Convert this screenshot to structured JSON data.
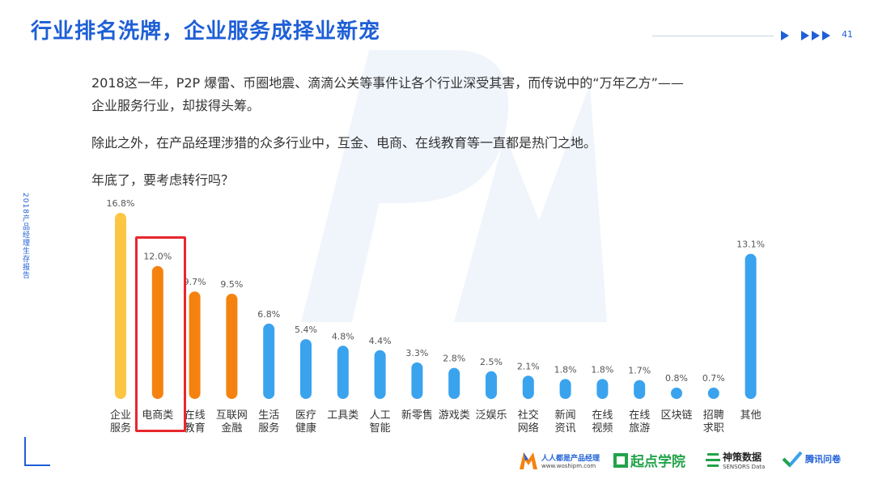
{
  "header": {
    "title": "行业排名洗牌，企业服务成择业新宠",
    "page_number": "41"
  },
  "sidebar": {
    "report_label": "2018产品经理生存报告"
  },
  "paragraphs": [
    "2018这一年，P2P 爆雷、币圈地震、滴滴公关等事件让各个行业深受其害，而传说中的“万年乙方”——",
    "企业服务行业，却拔得头筹。",
    "除此之外，在产品经理涉猎的众多行业中，互金、电商、在线教育等一直都是热门之地。",
    "年底了，要考虑转行吗？"
  ],
  "colors": {
    "yellow": "#fdc642",
    "orange": "#f5820f",
    "blue": "#3aa3ee",
    "highlight": "#e8262d",
    "title": "#1e5fd6"
  },
  "chart_data": {
    "type": "bar",
    "categories": [
      [
        "企业",
        "服务"
      ],
      [
        "电商类"
      ],
      [
        "在线",
        "教育"
      ],
      [
        "互联网",
        "金融"
      ],
      [
        "生活",
        "服务"
      ],
      [
        "医疗",
        "健康"
      ],
      [
        "工具类"
      ],
      [
        "人工",
        "智能"
      ],
      [
        "新零售"
      ],
      [
        "游戏类"
      ],
      [
        "泛娱乐"
      ],
      [
        "社交",
        "网络"
      ],
      [
        "新闻",
        "资讯"
      ],
      [
        "在线",
        "视频"
      ],
      [
        "在线",
        "旅游"
      ],
      [
        "区块链"
      ],
      [
        "招聘",
        "求职"
      ],
      [
        "其他"
      ]
    ],
    "values": [
      16.8,
      12.0,
      9.7,
      9.5,
      6.8,
      5.4,
      4.8,
      4.4,
      3.3,
      2.8,
      2.5,
      2.1,
      1.8,
      1.8,
      1.7,
      0.8,
      0.7,
      13.1
    ],
    "value_labels": [
      "16.8%",
      "12.0%",
      "9.7%",
      "9.5%",
      "6.8%",
      "5.4%",
      "4.8%",
      "4.4%",
      "3.3%",
      "2.8%",
      "2.5%",
      "2.1%",
      "1.8%",
      "1.8%",
      "1.7%",
      "0.8%",
      "0.7%",
      "13.1%"
    ],
    "bar_colors": [
      "yellow",
      "orange",
      "orange",
      "orange",
      "blue",
      "blue",
      "blue",
      "blue",
      "blue",
      "blue",
      "blue",
      "blue",
      "blue",
      "blue",
      "blue",
      "blue",
      "blue",
      "blue"
    ],
    "highlighted_category": "电商类",
    "ylim": [
      0,
      16.8
    ]
  },
  "logos": [
    {
      "name": "人人都是产品经理",
      "sub": "www.woshipm.com"
    },
    {
      "name": "起点学院",
      "sub": ""
    },
    {
      "name": "神策数据",
      "sub": "SENSORS Data"
    },
    {
      "name": "腾讯问卷",
      "sub": ""
    }
  ]
}
